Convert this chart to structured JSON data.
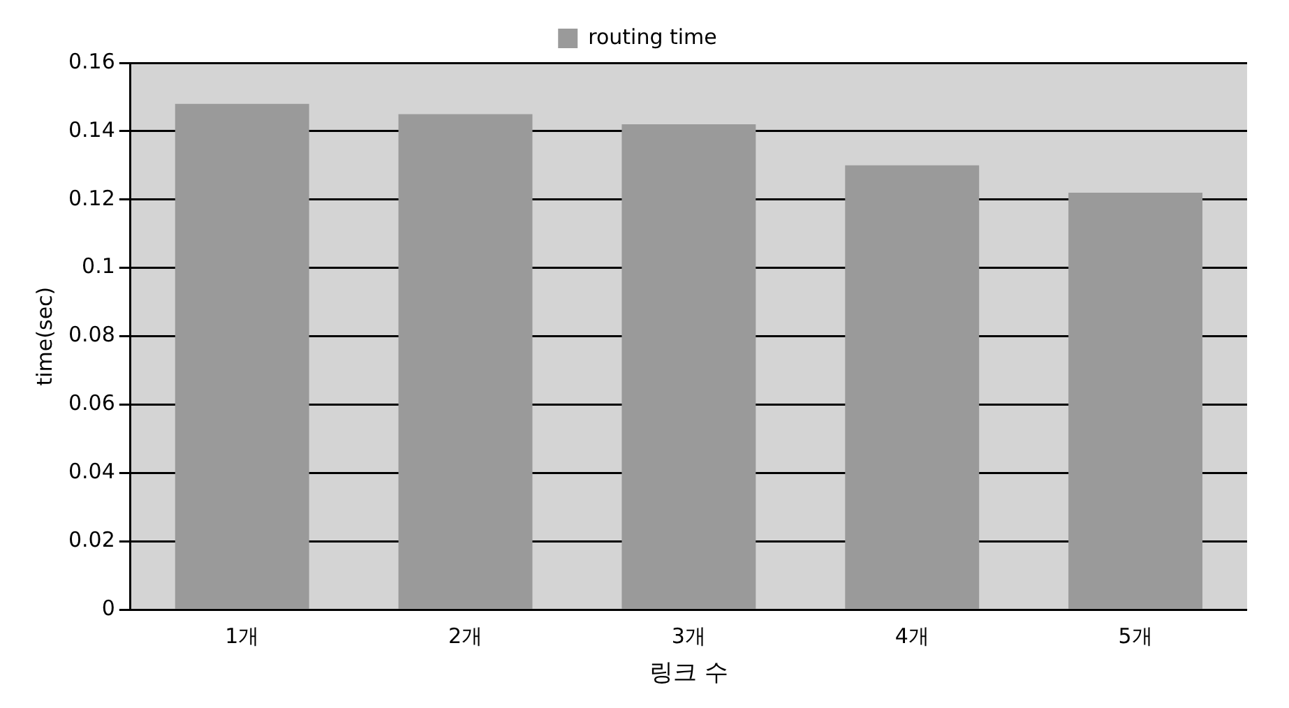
{
  "chart_data": {
    "type": "bar",
    "xlabel": "링크 수",
    "ylabel": "time(sec)",
    "categories": [
      "1개",
      "2개",
      "3개",
      "4개",
      "5개"
    ],
    "series": [
      {
        "name": "routing time",
        "color": "#9a9a9a",
        "values": [
          0.148,
          0.145,
          0.142,
          0.13,
          0.122
        ]
      }
    ],
    "ylim": [
      0,
      0.16
    ],
    "yticks": [
      0,
      0.02,
      0.04,
      0.06,
      0.08,
      0.1,
      0.12,
      0.14,
      0.16
    ],
    "grid": "y",
    "legend": "top"
  }
}
